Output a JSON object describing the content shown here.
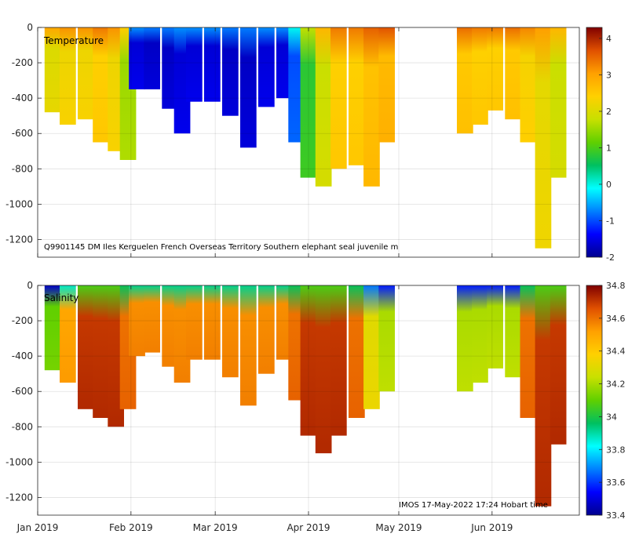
{
  "footer_text": "IMOS 17-May-2022 17:24 Hobart time",
  "chart_data": [
    {
      "type": "heatmap",
      "title": "Temperature",
      "annotation": "Q9901145 DM Iles Kerguelen French Overseas Territory Southern elephant seal juvenile m",
      "ylim": [
        -1300,
        0
      ],
      "yticks": [
        0,
        -200,
        -400,
        -600,
        -800,
        -1000,
        -1200
      ],
      "ytick_labels": [
        "0",
        "-200",
        "-400",
        "-600",
        "-800",
        "-1000",
        "-1200"
      ],
      "x_ticks": [
        "Jan 2019",
        "Feb 2019",
        "Mar 2019",
        "Apr 2019",
        "May 2019",
        "Jun 2019"
      ],
      "x_tick_days": [
        0,
        31,
        59,
        90,
        120,
        151
      ],
      "xlim_days": [
        0,
        180
      ],
      "grid": true,
      "colorbar": {
        "range": [
          -2,
          4.3
        ],
        "ticks": [
          4,
          3,
          2,
          1,
          0,
          -1,
          -2
        ],
        "tick_labels": [
          "4",
          "3",
          "2",
          "1",
          "0",
          "-1",
          "-2"
        ],
        "colors": [
          "#00008f",
          "#0000ff",
          "#0080ff",
          "#00ffff",
          "#00c060",
          "#60d000",
          "#c8e000",
          "#ffd000",
          "#ffa000",
          "#e05000",
          "#800000"
        ]
      },
      "profiles": [
        {
          "day": 5,
          "max_depth": -480,
          "value": 2.0
        },
        {
          "day": 10,
          "max_depth": -550,
          "value": 2.2
        },
        {
          "day": 16,
          "max_depth": -520,
          "value": 2.2
        },
        {
          "day": 21,
          "max_depth": -650,
          "value": 2.4
        },
        {
          "day": 26,
          "max_depth": -700,
          "value": 2.2
        },
        {
          "day": 30,
          "max_depth": -750,
          "value": 1.5
        },
        {
          "day": 33,
          "max_depth": -350,
          "value": -1.6
        },
        {
          "day": 38,
          "max_depth": -350,
          "value": -1.7
        },
        {
          "day": 44,
          "max_depth": -460,
          "value": -1.7
        },
        {
          "day": 48,
          "max_depth": -600,
          "value": -1.6
        },
        {
          "day": 52,
          "max_depth": -420,
          "value": -1.6
        },
        {
          "day": 58,
          "max_depth": -420,
          "value": -1.6
        },
        {
          "day": 64,
          "max_depth": -500,
          "value": -1.7
        },
        {
          "day": 70,
          "max_depth": -680,
          "value": -1.7
        },
        {
          "day": 76,
          "max_depth": -450,
          "value": -1.6
        },
        {
          "day": 82,
          "max_depth": -400,
          "value": -1.6
        },
        {
          "day": 86,
          "max_depth": -650,
          "value": -1.0
        },
        {
          "day": 90,
          "max_depth": -850,
          "value": 0.8
        },
        {
          "day": 95,
          "max_depth": -900,
          "value": 1.8
        },
        {
          "day": 100,
          "max_depth": -800,
          "value": 2.4
        },
        {
          "day": 106,
          "max_depth": -780,
          "value": 2.4
        },
        {
          "day": 111,
          "max_depth": -900,
          "value": 2.6
        },
        {
          "day": 116,
          "max_depth": -650,
          "value": 2.7
        },
        {
          "day": 142,
          "max_depth": -600,
          "value": 2.5
        },
        {
          "day": 147,
          "max_depth": -550,
          "value": 2.4
        },
        {
          "day": 152,
          "max_depth": -470,
          "value": 2.4
        },
        {
          "day": 158,
          "max_depth": -520,
          "value": 2.5
        },
        {
          "day": 163,
          "max_depth": -650,
          "value": 2.3
        },
        {
          "day": 168,
          "max_depth": -1250,
          "value": 2.1
        },
        {
          "day": 173,
          "max_depth": -850,
          "value": 1.8
        }
      ]
    },
    {
      "type": "heatmap",
      "title": "Salinity",
      "ylim": [
        -1300,
        0
      ],
      "yticks": [
        0,
        -200,
        -400,
        -600,
        -800,
        -1000,
        -1200
      ],
      "ytick_labels": [
        "0",
        "-200",
        "-400",
        "-600",
        "-800",
        "-1000",
        "-1200"
      ],
      "x_ticks": [
        "Jan 2019",
        "Feb 2019",
        "Mar 2019",
        "Apr 2019",
        "May 2019",
        "Jun 2019"
      ],
      "x_tick_days": [
        0,
        31,
        59,
        90,
        120,
        151
      ],
      "xlim_days": [
        0,
        180
      ],
      "grid": true,
      "colorbar": {
        "range": [
          33.4,
          34.8
        ],
        "ticks": [
          34.8,
          34.6,
          34.4,
          34.2,
          34,
          33.8,
          33.6,
          33.4
        ],
        "tick_labels": [
          "34.8",
          "34.6",
          "34.4",
          "34.2",
          "34",
          "33.8",
          "33.6",
          "33.4"
        ],
        "colors": [
          "#00008f",
          "#0000ff",
          "#0080ff",
          "#00ffff",
          "#00c060",
          "#60d000",
          "#c8e000",
          "#ffd000",
          "#ffa000",
          "#e05000",
          "#800000"
        ]
      },
      "profiles": [
        {
          "day": 5,
          "max_depth": -480,
          "value": 34.1
        },
        {
          "day": 10,
          "max_depth": -550,
          "value": 34.5
        },
        {
          "day": 16,
          "max_depth": -700,
          "value": 34.7
        },
        {
          "day": 21,
          "max_depth": -750,
          "value": 34.7
        },
        {
          "day": 26,
          "max_depth": -800,
          "value": 34.7
        },
        {
          "day": 30,
          "max_depth": -700,
          "value": 34.6
        },
        {
          "day": 33,
          "max_depth": -400,
          "value": 34.55
        },
        {
          "day": 38,
          "max_depth": -380,
          "value": 34.55
        },
        {
          "day": 44,
          "max_depth": -460,
          "value": 34.55
        },
        {
          "day": 48,
          "max_depth": -550,
          "value": 34.55
        },
        {
          "day": 52,
          "max_depth": -420,
          "value": 34.55
        },
        {
          "day": 58,
          "max_depth": -420,
          "value": 34.55
        },
        {
          "day": 64,
          "max_depth": -520,
          "value": 34.55
        },
        {
          "day": 70,
          "max_depth": -680,
          "value": 34.55
        },
        {
          "day": 76,
          "max_depth": -500,
          "value": 34.55
        },
        {
          "day": 82,
          "max_depth": -420,
          "value": 34.55
        },
        {
          "day": 86,
          "max_depth": -650,
          "value": 34.6
        },
        {
          "day": 90,
          "max_depth": -850,
          "value": 34.7
        },
        {
          "day": 95,
          "max_depth": -950,
          "value": 34.7
        },
        {
          "day": 100,
          "max_depth": -850,
          "value": 34.7
        },
        {
          "day": 106,
          "max_depth": -750,
          "value": 34.6
        },
        {
          "day": 111,
          "max_depth": -700,
          "value": 34.3
        },
        {
          "day": 116,
          "max_depth": -600,
          "value": 34.2
        },
        {
          "day": 142,
          "max_depth": -600,
          "value": 34.2
        },
        {
          "day": 147,
          "max_depth": -550,
          "value": 34.2
        },
        {
          "day": 152,
          "max_depth": -470,
          "value": 34.2
        },
        {
          "day": 158,
          "max_depth": -520,
          "value": 34.2
        },
        {
          "day": 163,
          "max_depth": -750,
          "value": 34.6
        },
        {
          "day": 168,
          "max_depth": -1250,
          "value": 34.7
        },
        {
          "day": 173,
          "max_depth": -900,
          "value": 34.7
        }
      ]
    }
  ]
}
